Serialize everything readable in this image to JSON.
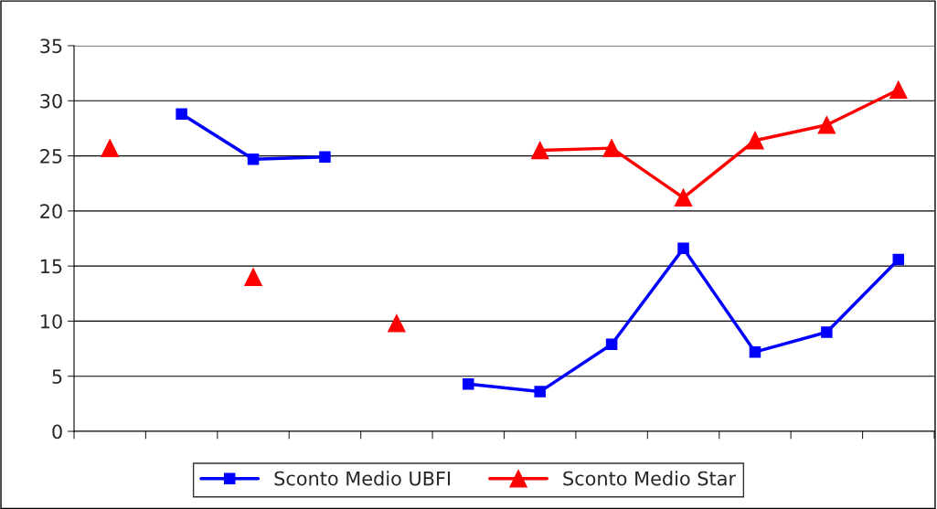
{
  "chart_data": {
    "type": "line",
    "categories": [
      null,
      null,
      null,
      null,
      null,
      null,
      null,
      null,
      null,
      null,
      null,
      null
    ],
    "series": [
      {
        "name": "Sconto Medio UBFI",
        "color": "#0000ff",
        "marker": "square",
        "values": [
          null,
          28.8,
          24.7,
          24.9,
          null,
          4.3,
          3.6,
          7.9,
          16.6,
          7.2,
          9.0,
          15.6
        ]
      },
      {
        "name": "Sconto Medio Star",
        "color": "#ff0000",
        "marker": "triangle",
        "values": [
          25.7,
          null,
          14.0,
          null,
          9.8,
          null,
          25.5,
          25.7,
          21.2,
          26.4,
          27.8,
          31.0
        ]
      }
    ],
    "ylim": [
      0,
      35
    ],
    "yticks": [
      0,
      5,
      10,
      15,
      20,
      25,
      30,
      35
    ],
    "grid": "y",
    "legend": "bottom",
    "line_style": "solid"
  }
}
